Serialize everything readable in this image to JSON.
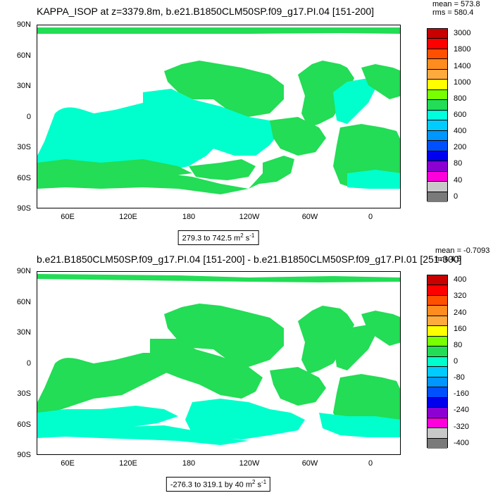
{
  "chart_data": [
    {
      "type": "heatmap",
      "title": "KAPPA_ISOP at z=3379.8m, b.e21.B1850CLM50SP.f09_g17.PI.04 [151-200]",
      "stats": {
        "mean": "mean = 573.8",
        "rms": "rms = 580.4"
      },
      "y_ticks": [
        "90N",
        "60N",
        "30N",
        "0",
        "30S",
        "60S",
        "90S"
      ],
      "x_ticks": [
        "60E",
        "120E",
        "180",
        "120W",
        "60W",
        "0"
      ],
      "range_label": "279.3 to 742.5 m",
      "range_units_sup": "2",
      "range_units_tail": " s",
      "range_units_sup2": "-1",
      "colorbar_levels": [
        "3000",
        "1800",
        "1400",
        "1000",
        "800",
        "600",
        "400",
        "200",
        "80",
        "40",
        "0"
      ],
      "colorbar_colors": [
        "#c80000",
        "#ff0000",
        "#ff5000",
        "#ff8c1e",
        "#ffaa3c",
        "#ffff00",
        "#78ff00",
        "#22dd55",
        "#00ffdd",
        "#00ccff",
        "#0096ff",
        "#0050ff",
        "#0000ee",
        "#8c00d2",
        "#ff00dc",
        "#c8c8c8",
        "#7a7a7a"
      ],
      "dominant_field_color": "#22dd55",
      "secondary_field_color": "#00ffcc"
    },
    {
      "type": "heatmap",
      "title": "b.e21.B1850CLM50SP.f09_g17.PI.04 [151-200] - b.e21.B1850CLM50SP.f09_g17.PI.01 [251-300]",
      "stats": {
        "mean": "mean = -0.7093",
        "rms": "rms 4.5"
      },
      "y_ticks": [
        "90N",
        "60N",
        "30N",
        "0",
        "30S",
        "60S",
        "90S"
      ],
      "x_ticks": [
        "60E",
        "120E",
        "180",
        "120W",
        "60W",
        "0"
      ],
      "range_label": "-276.3 to 319.1 by 40 m",
      "range_units_sup": "2",
      "range_units_tail": " s",
      "range_units_sup2": "-1",
      "colorbar_levels": [
        "400",
        "320",
        "240",
        "160",
        "80",
        "0",
        "-80",
        "-160",
        "-240",
        "-320",
        "-400"
      ],
      "colorbar_colors": [
        "#c80000",
        "#ff0000",
        "#ff5000",
        "#ff8c1e",
        "#ffaa3c",
        "#ffff00",
        "#78ff00",
        "#22dd55",
        "#00ffcc",
        "#00ccff",
        "#0096ff",
        "#0050ff",
        "#0000ee",
        "#8c00d2",
        "#ff00dc",
        "#c8c8c8",
        "#7a7a7a"
      ],
      "dominant_field_color": "#22dd55",
      "secondary_field_color": "#00ffcc"
    }
  ]
}
